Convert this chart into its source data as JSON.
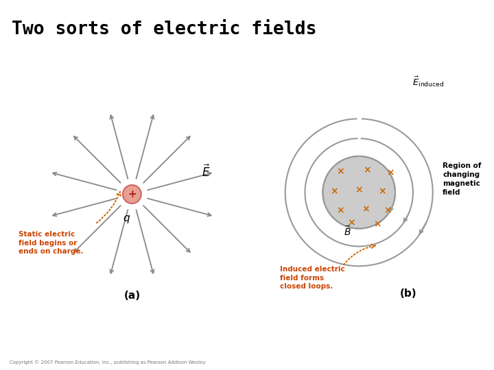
{
  "title": "Two sorts of electric fields",
  "title_bg_color": "#ffffee",
  "bg_color": "#ffffff",
  "left_panel_label": "(a)",
  "right_panel_label": "(b)",
  "charge_color": "#e8a090",
  "charge_outline": "#cc6666",
  "arrow_color": "#888888",
  "dotted_arrow_color": "#cc6600",
  "text_color_orange": "#cc4400",
  "text_color_black": "#000000",
  "static_text": "Static electric\nfield begins or\nends on charge.",
  "induced_text": "Induced electric\nfield forms\nclosed loops.",
  "region_text": "Region of\nchanging\nmagnetic\nfield",
  "copyright_text": "Copyright © 2007 Pearson Education, Inc., publishing as Pearson Addison Wesley.",
  "E_label": "$\\vec{E}$",
  "E_induced_label": "$\\vec{E}_{\\mathrm{induced}}$",
  "B_label": "$\\vec{B}$",
  "q_label": "$q$",
  "x_cross_color": "#cc6600",
  "circle_color": "#999999",
  "inner_fill_color": "#cccccc",
  "num_radial_arrows": 12,
  "loop_radii": [
    0.55,
    0.82,
    1.12
  ]
}
